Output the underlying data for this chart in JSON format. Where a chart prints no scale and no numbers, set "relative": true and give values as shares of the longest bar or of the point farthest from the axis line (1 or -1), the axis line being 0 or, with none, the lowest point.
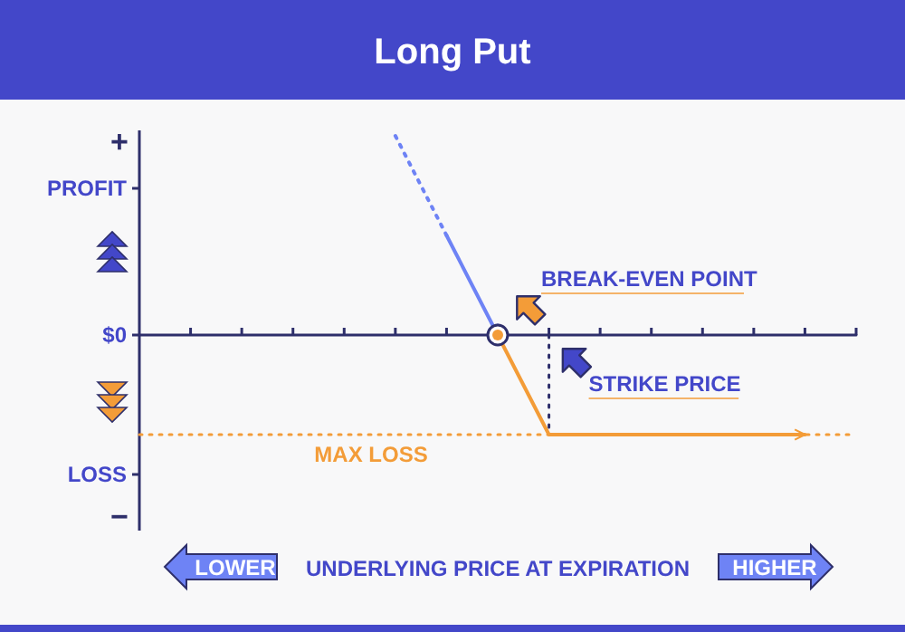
{
  "chart_data": {
    "type": "line",
    "title": "Long Put",
    "relative": true,
    "categories": [
      null,
      null,
      null,
      null,
      null,
      null,
      null,
      null,
      null,
      null,
      null,
      null,
      null,
      null,
      null
    ],
    "series": [
      {
        "values": [
          null,
          null,
          null,
          null,
          null,
          null,
          0.5,
          0,
          null,
          null,
          null,
          null,
          null,
          null,
          null
        ],
        "color": "#6e83f5",
        "line_style": "solid"
      },
      {
        "values": [
          null,
          null,
          null,
          null,
          null,
          1,
          0.5,
          null,
          null,
          null,
          null,
          null,
          null,
          null,
          null
        ],
        "color": "#6e83f5",
        "line_style": "dotted"
      },
      {
        "values": [
          null,
          null,
          null,
          null,
          null,
          null,
          null,
          0,
          -0.5,
          -0.5,
          -0.5,
          -0.5,
          -0.5,
          -0.5,
          null
        ],
        "color": "#f39c38",
        "line_style": "solid"
      }
    ],
    "ref_lines": [
      {
        "axis": "y",
        "value": 0,
        "color": "#2e2f6b",
        "line_style": "solid"
      },
      {
        "axis": "y",
        "value": -0.5,
        "label": "MAX LOSS",
        "color": "#f39c38",
        "line_style": "dotted"
      }
    ],
    "annotations": [
      "+",
      "PROFIT",
      "$0",
      "LOSS",
      "−",
      "BREAK-EVEN POINT",
      "STRIKE PRICE",
      "LOWER",
      "HIGHER",
      "UNDERLYING PRICE AT EXPIRATION"
    ]
  }
}
